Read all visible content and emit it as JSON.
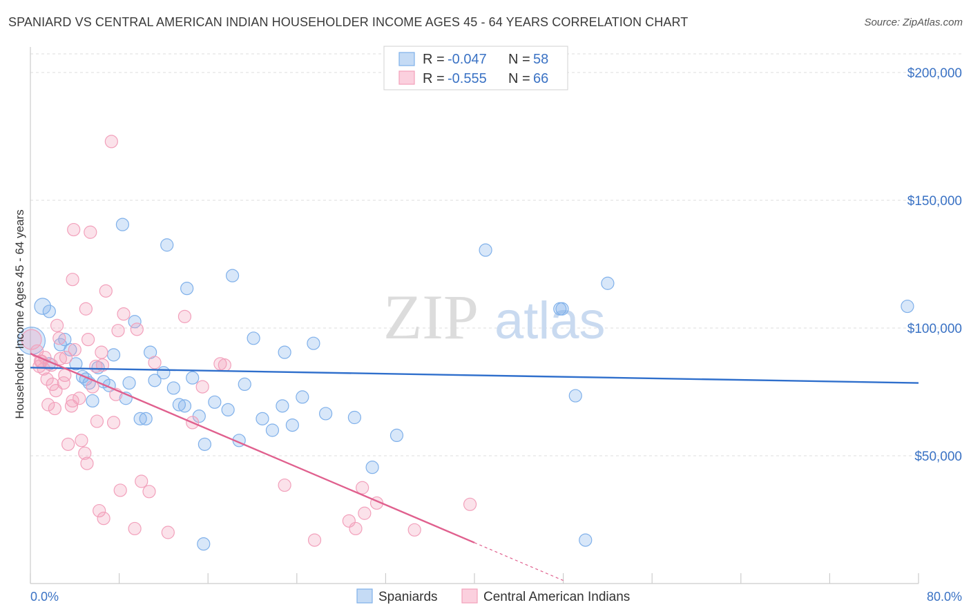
{
  "title": "SPANIARD VS CENTRAL AMERICAN INDIAN HOUSEHOLDER INCOME AGES 45 - 64 YEARS CORRELATION CHART",
  "source": "Source: ZipAtlas.com",
  "watermark": {
    "zip": "ZIP",
    "atlas": "atlas"
  },
  "colors": {
    "blue": "#7fb0ea",
    "blue_line": "#2f6fcc",
    "pink": "#f2a0bb",
    "pink_line": "#e0608e",
    "tick": "#3a72c4",
    "grid": "#dddddd"
  },
  "legend": {
    "r_label": "R =",
    "n_label": "N =",
    "rows": [
      {
        "r": "-0.047",
        "n": "58",
        "series": "blue"
      },
      {
        "r": "-0.555",
        "n": "66",
        "series": "pink"
      }
    ]
  },
  "bottom_legend": [
    "Spaniards",
    "Central American Indians"
  ],
  "chart_data": {
    "type": "scatter",
    "xlabel": "",
    "ylabel": "Householder Income Ages 45 - 64 years",
    "xlim": [
      0,
      80
    ],
    "ylim": [
      0,
      210000
    ],
    "x_tick_labels": [
      "0.0%",
      "80.0%"
    ],
    "y_ticks": [
      50000,
      100000,
      150000,
      200000
    ],
    "y_tick_labels": [
      "$50,000",
      "$100,000",
      "$150,000",
      "$200,000"
    ],
    "grid": true,
    "legend_position": "top-center",
    "series": [
      {
        "name": "Spaniards",
        "color": "blue",
        "r": -0.047,
        "n": 58,
        "trend": {
          "x0": 0,
          "y0": 84500,
          "x1": 80,
          "y1": 78500,
          "dashed_from": null
        },
        "points": [
          [
            0.1,
            95000,
            2.2
          ],
          [
            1.1,
            108500,
            1.3
          ],
          [
            1.7,
            106500,
            1
          ],
          [
            3.1,
            95500,
            1
          ],
          [
            2.7,
            93500,
            1
          ],
          [
            3.6,
            91500,
            1
          ],
          [
            4.1,
            86000,
            1
          ],
          [
            4.7,
            81000,
            1
          ],
          [
            5.3,
            78500,
            1
          ],
          [
            5.6,
            71500,
            1
          ],
          [
            6.1,
            84500,
            1
          ],
          [
            6.6,
            79000,
            1
          ],
          [
            7.1,
            77500,
            1
          ],
          [
            7.5,
            89500,
            1
          ],
          [
            8.3,
            140500,
            1
          ],
          [
            8.6,
            72500,
            1
          ],
          [
            8.9,
            78500,
            1
          ],
          [
            9.4,
            102500,
            1
          ],
          [
            9.9,
            64500,
            1
          ],
          [
            10.4,
            64500,
            1
          ],
          [
            10.8,
            90500,
            1
          ],
          [
            11.2,
            79500,
            1
          ],
          [
            12.0,
            82500,
            1
          ],
          [
            12.3,
            132500,
            1
          ],
          [
            12.9,
            76500,
            1
          ],
          [
            13.4,
            70000,
            1
          ],
          [
            13.9,
            69500,
            1
          ],
          [
            14.1,
            115500,
            1
          ],
          [
            14.6,
            80500,
            1
          ],
          [
            15.2,
            65500,
            1
          ],
          [
            15.7,
            54500,
            1
          ],
          [
            15.6,
            15500,
            1
          ],
          [
            16.6,
            71000,
            1
          ],
          [
            17.8,
            68000,
            1
          ],
          [
            18.2,
            120500,
            1
          ],
          [
            18.8,
            56000,
            1
          ],
          [
            19.3,
            78000,
            1
          ],
          [
            20.1,
            96000,
            1
          ],
          [
            20.9,
            64500,
            1
          ],
          [
            21.8,
            60000,
            1
          ],
          [
            22.7,
            69500,
            1
          ],
          [
            22.9,
            90500,
            1
          ],
          [
            23.6,
            62000,
            1
          ],
          [
            24.5,
            73000,
            1
          ],
          [
            25.5,
            94000,
            1
          ],
          [
            26.6,
            66500,
            1
          ],
          [
            29.2,
            65000,
            1
          ],
          [
            30.8,
            45500,
            1
          ],
          [
            33.0,
            58000,
            1
          ],
          [
            41.0,
            130500,
            1
          ],
          [
            47.7,
            107500,
            1
          ],
          [
            47.9,
            107500,
            1
          ],
          [
            49.1,
            73500,
            1
          ],
          [
            50.0,
            17000,
            1
          ],
          [
            52.0,
            117500,
            1
          ],
          [
            79.0,
            108500,
            1
          ],
          [
            1.7,
            86000,
            1
          ],
          [
            5.0,
            80000,
            1
          ]
        ]
      },
      {
        "name": "Central American Indians",
        "color": "pink",
        "r": -0.555,
        "n": 66,
        "trend": {
          "x0": 0,
          "y0": 90000,
          "x1": 40,
          "y1": 16000,
          "dashed_to_x": 48
        },
        "points": [
          [
            0.1,
            95500,
            1.6
          ],
          [
            0.6,
            91000,
            1
          ],
          [
            0.8,
            85000,
            1
          ],
          [
            1.0,
            87000,
            1
          ],
          [
            1.3,
            88500,
            1
          ],
          [
            1.5,
            80000,
            1
          ],
          [
            1.6,
            70000,
            1
          ],
          [
            1.9,
            85500,
            1
          ],
          [
            2.0,
            78000,
            1
          ],
          [
            2.2,
            68500,
            1
          ],
          [
            2.3,
            75500,
            1
          ],
          [
            2.4,
            101000,
            1
          ],
          [
            2.6,
            96000,
            1
          ],
          [
            2.7,
            88000,
            1
          ],
          [
            3.0,
            78500,
            1
          ],
          [
            3.1,
            81500,
            1
          ],
          [
            3.2,
            88500,
            1
          ],
          [
            3.4,
            54500,
            1
          ],
          [
            3.7,
            69500,
            1
          ],
          [
            3.8,
            71500,
            1
          ],
          [
            4.0,
            91500,
            1
          ],
          [
            3.9,
            138500,
            1
          ],
          [
            3.8,
            119000,
            1
          ],
          [
            4.4,
            72500,
            1
          ],
          [
            4.6,
            56000,
            1
          ],
          [
            4.9,
            51000,
            1
          ],
          [
            5.1,
            47000,
            1
          ],
          [
            5.0,
            107500,
            1
          ],
          [
            5.2,
            95500,
            1
          ],
          [
            5.4,
            137500,
            1
          ],
          [
            5.6,
            77000,
            1
          ],
          [
            5.9,
            85000,
            1
          ],
          [
            6.0,
            63500,
            1
          ],
          [
            6.2,
            28500,
            1
          ],
          [
            6.6,
            25500,
            1
          ],
          [
            6.4,
            90500,
            1
          ],
          [
            6.5,
            85500,
            1
          ],
          [
            6.8,
            114500,
            1
          ],
          [
            7.3,
            173000,
            1
          ],
          [
            7.5,
            63000,
            1
          ],
          [
            7.7,
            74000,
            1
          ],
          [
            7.9,
            99000,
            1
          ],
          [
            8.1,
            36500,
            1
          ],
          [
            8.4,
            105500,
            1
          ],
          [
            9.4,
            21500,
            1
          ],
          [
            9.6,
            99500,
            1
          ],
          [
            10.0,
            40000,
            1
          ],
          [
            10.7,
            36000,
            1
          ],
          [
            11.2,
            86500,
            1
          ],
          [
            12.4,
            20000,
            1
          ],
          [
            13.9,
            104500,
            1
          ],
          [
            14.6,
            63000,
            1
          ],
          [
            15.5,
            77000,
            1
          ],
          [
            17.1,
            86000,
            1
          ],
          [
            17.5,
            85500,
            1
          ],
          [
            22.9,
            38500,
            1
          ],
          [
            25.6,
            17000,
            1
          ],
          [
            28.7,
            24500,
            1
          ],
          [
            29.3,
            21500,
            1
          ],
          [
            29.9,
            37500,
            1
          ],
          [
            30.1,
            27500,
            1
          ],
          [
            31.2,
            31500,
            1
          ],
          [
            34.6,
            21000,
            1
          ],
          [
            39.6,
            31000,
            1
          ],
          [
            0.9,
            87000,
            1
          ],
          [
            1.2,
            84000,
            1
          ]
        ]
      }
    ]
  }
}
